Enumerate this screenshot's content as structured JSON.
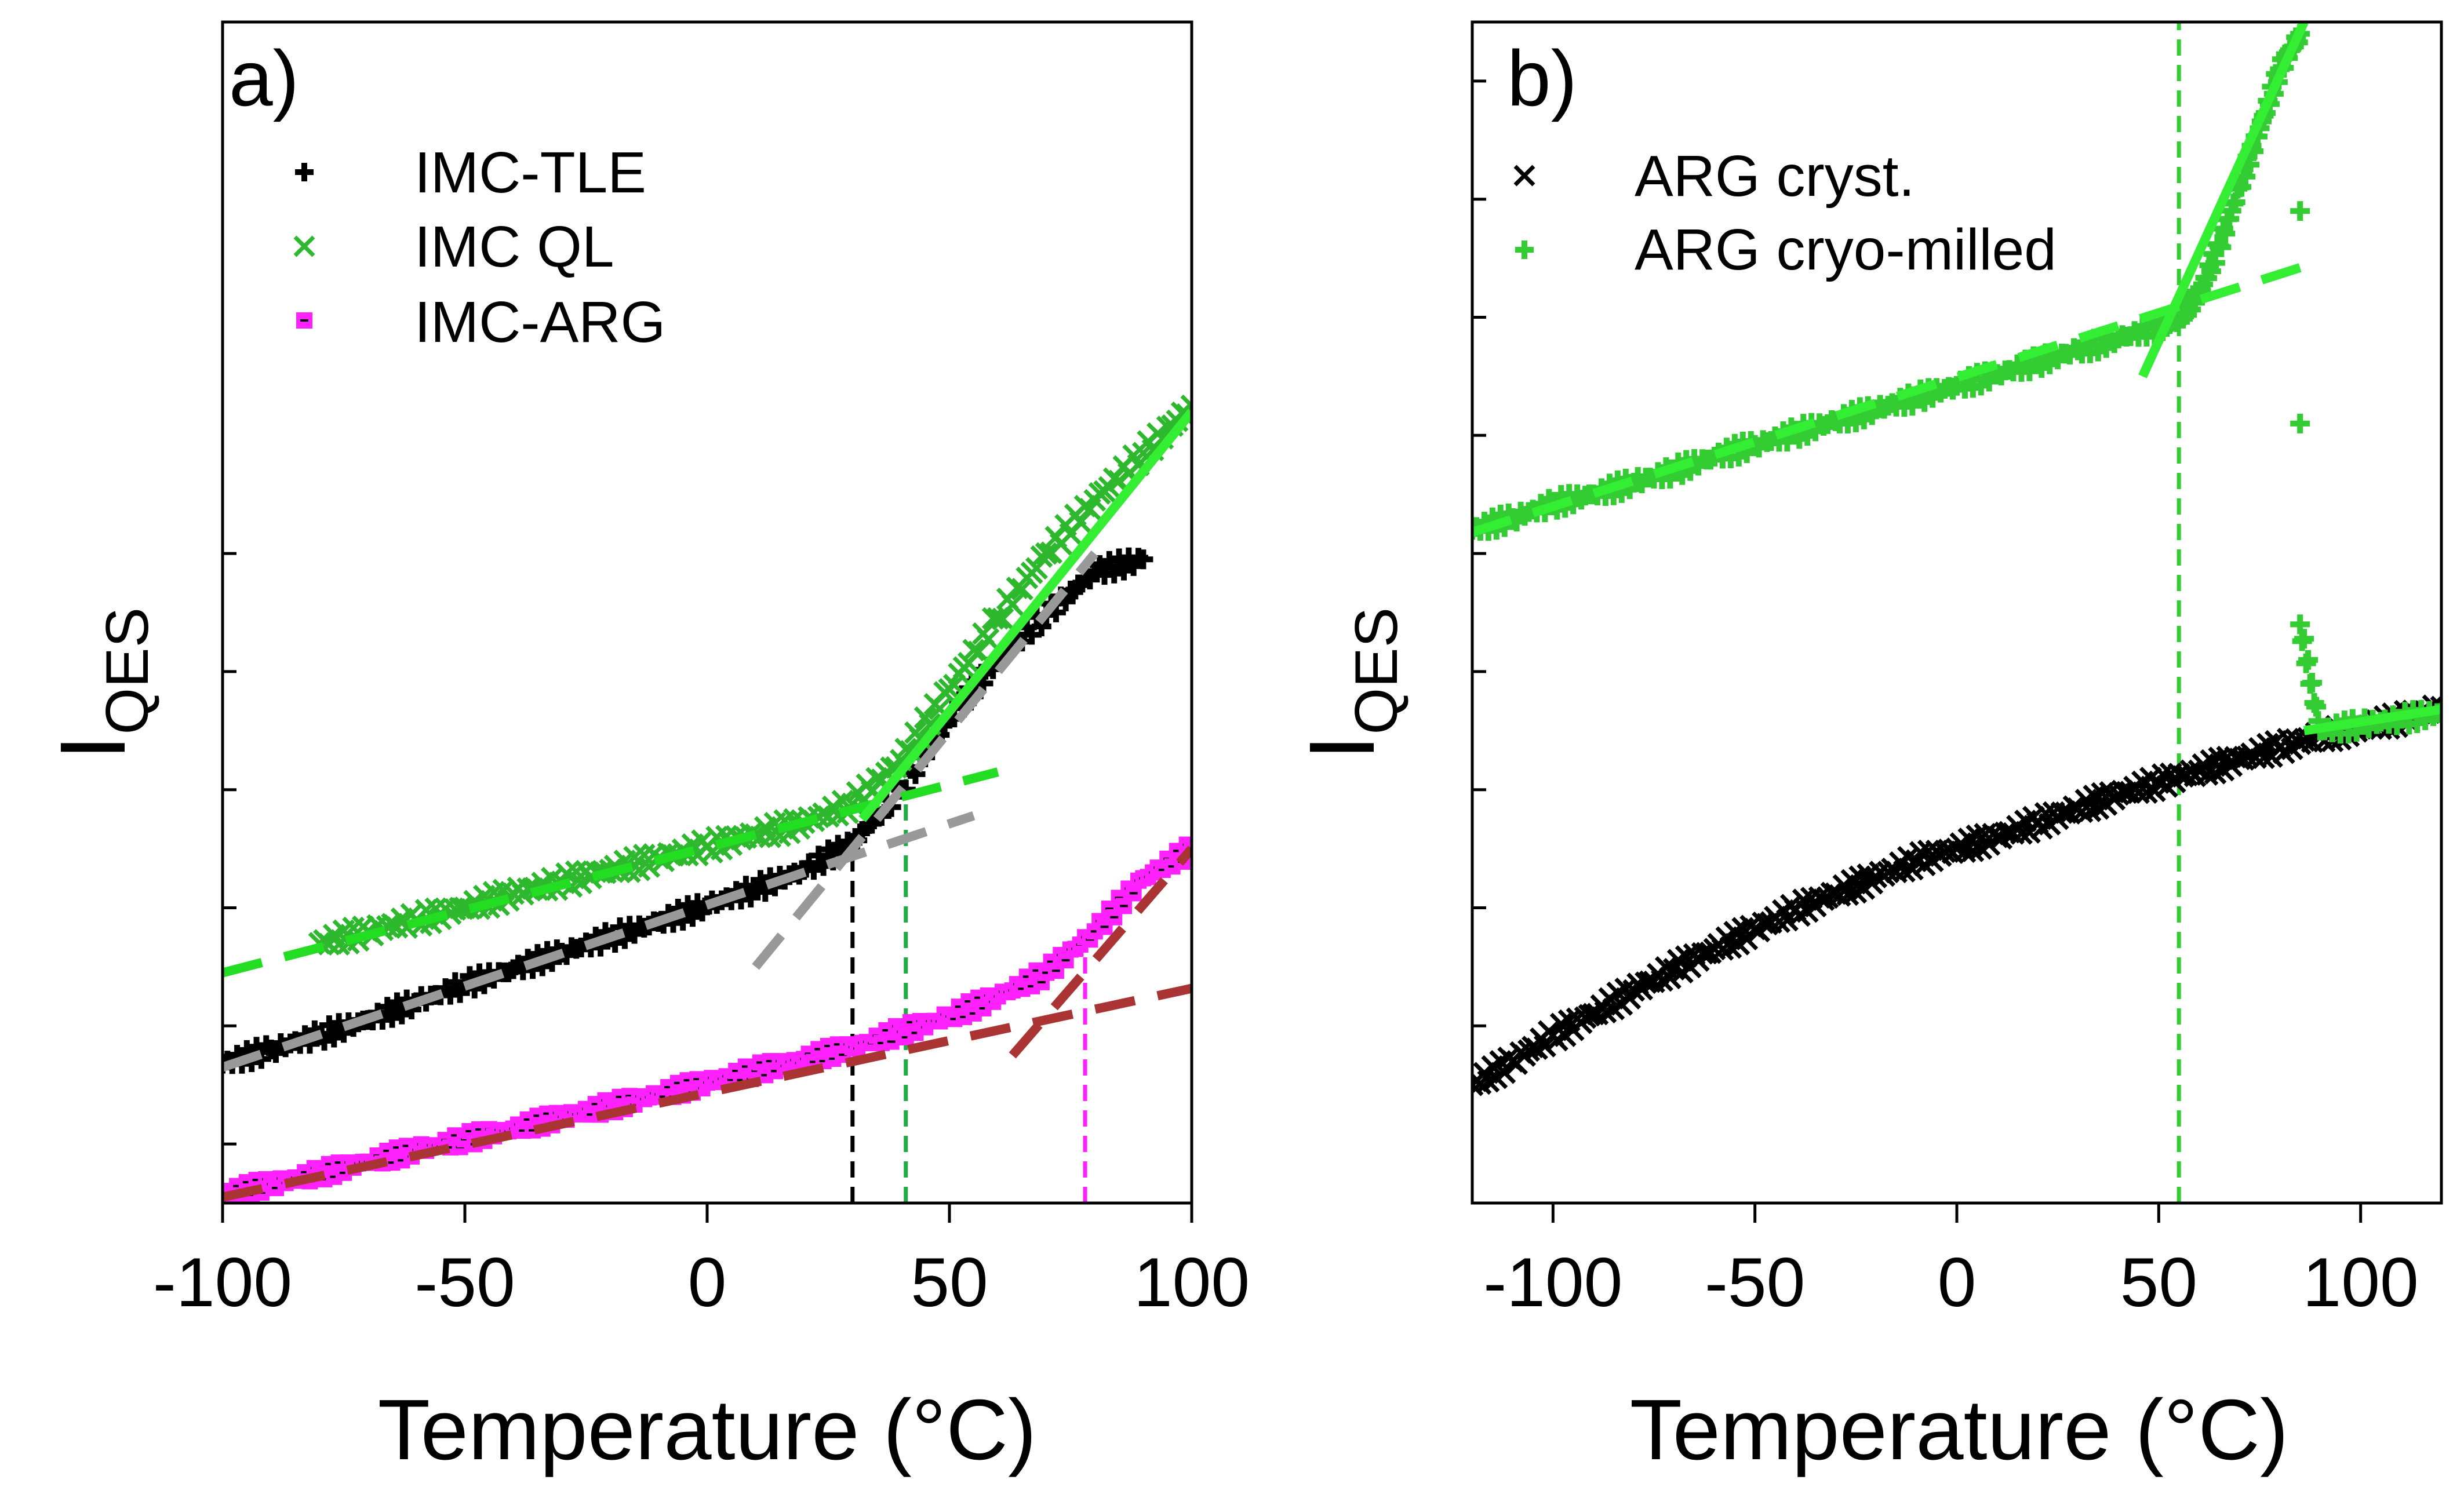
{
  "chart_data": [
    {
      "type": "scatter",
      "panel_label": "a)",
      "xlabel": "Temperature (°C)",
      "ylabel_main": "I",
      "ylabel_sub": "QES",
      "xlim": [
        -100,
        100
      ],
      "ylim": [
        0,
        10
      ],
      "xticks": [
        -100,
        -50,
        0,
        50,
        100
      ],
      "xtick_labels": [
        "-100",
        "-50",
        "0",
        "50",
        "100"
      ],
      "yticks": [
        0.5,
        1.5,
        2.5,
        3.5,
        4.5,
        5.5
      ],
      "ytick_labels": [
        "",
        "",
        "",
        "",
        "",
        ""
      ],
      "legend_position": "top-left",
      "series": [
        {
          "name": "IMC-TLE",
          "marker": "plus",
          "color": "#000000",
          "x": [
            -100,
            -90,
            -80,
            -70,
            -60,
            -50,
            -40,
            -30,
            -20,
            -10,
            0,
            10,
            20,
            30,
            40,
            50,
            60,
            70,
            80,
            90
          ],
          "y": [
            1.18,
            1.3,
            1.42,
            1.55,
            1.7,
            1.85,
            1.98,
            2.12,
            2.25,
            2.38,
            2.52,
            2.66,
            2.82,
            3.05,
            3.5,
            4.1,
            4.6,
            4.98,
            5.35,
            5.45
          ],
          "fit_lines": [
            {
              "x": [
                -100,
                55
              ],
              "y": [
                1.15,
                3.28
              ],
              "color": "#999999",
              "style": "dash"
            },
            {
              "x": [
                10,
                80
              ],
              "y": [
                2.0,
                5.5
              ],
              "color": "#999999",
              "style": "dash"
            }
          ],
          "vline": {
            "x": 30,
            "color": "#000000"
          }
        },
        {
          "name": "IMC QL",
          "marker": "x",
          "color": "#2db82d",
          "x": [
            -80,
            -70,
            -60,
            -50,
            -40,
            -30,
            -20,
            -10,
            0,
            10,
            20,
            30,
            40,
            50,
            60,
            70,
            80,
            90,
            100
          ],
          "y": [
            2.2,
            2.3,
            2.4,
            2.5,
            2.62,
            2.72,
            2.82,
            2.92,
            3.02,
            3.12,
            3.22,
            3.38,
            3.75,
            4.35,
            4.95,
            5.5,
            5.95,
            6.35,
            6.75
          ],
          "fit_lines": [
            {
              "x": [
                -100,
                60
              ],
              "y": [
                1.95,
                3.65
              ],
              "color": "#22dd22",
              "style": "dash"
            },
            {
              "x": [
                32,
                100
              ],
              "y": [
                3.25,
                6.7
              ],
              "color": "#33ee33",
              "style": "solid"
            }
          ],
          "vline": {
            "x": 41,
            "color": "#22aa44"
          }
        },
        {
          "name": "IMC-ARG",
          "marker": "square",
          "color": "#ff22ff",
          "x": [
            -100,
            -90,
            -80,
            -70,
            -60,
            -50,
            -40,
            -30,
            -20,
            -10,
            0,
            10,
            20,
            30,
            40,
            50,
            60,
            70,
            80,
            90,
            100
          ],
          "y": [
            0.08,
            0.16,
            0.25,
            0.35,
            0.45,
            0.54,
            0.63,
            0.73,
            0.82,
            0.92,
            1.02,
            1.12,
            1.22,
            1.32,
            1.45,
            1.58,
            1.75,
            1.95,
            2.3,
            2.75,
            3.0
          ],
          "fit_lines": [
            {
              "x": [
                -100,
                115
              ],
              "y": [
                0.05,
                1.95
              ],
              "color": "#aa3333",
              "style": "dash"
            },
            {
              "x": [
                63,
                100
              ],
              "y": [
                1.25,
                3.0
              ],
              "color": "#aa3333",
              "style": "dash"
            }
          ],
          "vline": {
            "x": 78,
            "color": "#ff22ff"
          }
        }
      ]
    },
    {
      "type": "scatter",
      "panel_label": "b)",
      "xlabel": "Temperature (°C)",
      "ylabel_main": "I",
      "ylabel_sub": "QES",
      "xlim": [
        -120,
        120
      ],
      "ylim": [
        0,
        10
      ],
      "xticks": [
        -100,
        -50,
        0,
        50,
        100
      ],
      "xtick_labels": [
        "-100",
        "-50",
        "0",
        "50",
        "100"
      ],
      "yticks": [
        1.5,
        2.5,
        3.5,
        4.5,
        5.5,
        6.5,
        7.5,
        8.5,
        9.5
      ],
      "ytick_labels": [
        "",
        "",
        "",
        "",
        "",
        "",
        "",
        "",
        ""
      ],
      "legend_position": "top-left",
      "series": [
        {
          "name": "ARG cryst.",
          "marker": "x",
          "color": "#000000",
          "x": [
            -120,
            -110,
            -100,
            -90,
            -80,
            -70,
            -60,
            -50,
            -40,
            -30,
            -20,
            -10,
            0,
            10,
            20,
            30,
            40,
            50,
            60,
            70,
            80,
            90,
            100,
            110,
            120
          ],
          "y": [
            1.0,
            1.2,
            1.42,
            1.6,
            1.8,
            1.98,
            2.15,
            2.32,
            2.48,
            2.62,
            2.76,
            2.9,
            3.0,
            3.1,
            3.22,
            3.34,
            3.46,
            3.56,
            3.66,
            3.76,
            3.86,
            3.95,
            4.02,
            4.1,
            4.2
          ],
          "fit_lines": []
        },
        {
          "name": "ARG cryo-milled",
          "marker": "plus",
          "color": "#33cc33",
          "x": [
            -120,
            -110,
            -100,
            -90,
            -80,
            -70,
            -60,
            -50,
            -40,
            -30,
            -20,
            -10,
            0,
            10,
            20,
            30,
            40,
            50,
            55,
            60,
            65,
            70,
            75,
            80,
            85,
            85,
            85,
            85,
            90,
            100,
            110,
            120
          ],
          "y": [
            5.7,
            5.8,
            5.92,
            6.0,
            6.1,
            6.2,
            6.32,
            6.42,
            6.52,
            6.62,
            6.72,
            6.82,
            6.92,
            7.02,
            7.12,
            7.22,
            7.32,
            7.42,
            7.5,
            7.7,
            8.1,
            8.6,
            9.1,
            9.6,
            9.9,
            8.4,
            6.6,
            4.9,
            4.0,
            4.05,
            4.1,
            4.15
          ],
          "fit_lines": [
            {
              "x": [
                -120,
                85
              ],
              "y": [
                5.68,
                7.92
              ],
              "color": "#33ee33",
              "style": "dash"
            },
            {
              "x": [
                46,
                86
              ],
              "y": [
                7.0,
                10.0
              ],
              "color": "#33ee33",
              "style": "solid"
            },
            {
              "x": [
                86,
                120
              ],
              "y": [
                4.0,
                4.18
              ],
              "color": "#33ee33",
              "style": "solid"
            }
          ],
          "vline": {
            "x": 55,
            "color": "#33cc33"
          }
        }
      ]
    }
  ]
}
